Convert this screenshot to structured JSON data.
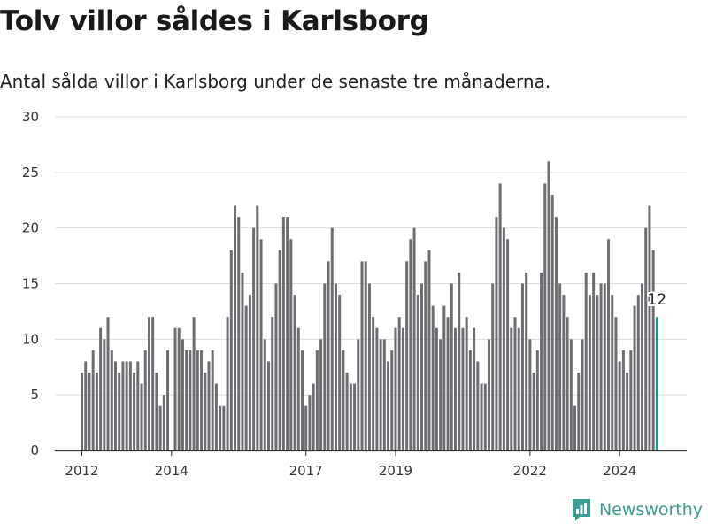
{
  "title": "Tolv villor såldes i Karlsborg",
  "subtitle": "Antal sålda villor i Karlsborg under de senaste tre månaderna.",
  "brand": "Newsworthy",
  "colors": {
    "bar": "#6e6d72",
    "highlight": "#1a9a8e",
    "grid": "#dddddd",
    "axis": "#333333"
  },
  "chart_data": {
    "type": "bar",
    "title": "Tolv villor såldes i Karlsborg",
    "ylim": [
      0,
      30
    ],
    "yticks": [
      0,
      5,
      10,
      15,
      20,
      25,
      30
    ],
    "xticks": [
      "2012",
      "2014",
      "2017",
      "2019",
      "2022",
      "2024"
    ],
    "grid": true,
    "values": [
      7,
      8,
      7,
      9,
      7,
      11,
      10,
      12,
      9,
      8,
      7,
      8,
      8,
      8,
      7,
      8,
      6,
      9,
      12,
      12,
      7,
      4,
      5,
      9,
      0,
      11,
      11,
      10,
      9,
      9,
      12,
      9,
      9,
      7,
      8,
      9,
      6,
      4,
      4,
      12,
      18,
      22,
      21,
      16,
      13,
      14,
      20,
      22,
      19,
      10,
      8,
      12,
      15,
      18,
      21,
      21,
      19,
      14,
      11,
      9,
      4,
      5,
      6,
      9,
      10,
      15,
      17,
      20,
      15,
      14,
      9,
      7,
      6,
      6,
      10,
      17,
      17,
      15,
      12,
      11,
      10,
      10,
      8,
      9,
      11,
      12,
      11,
      17,
      19,
      20,
      14,
      15,
      17,
      18,
      13,
      11,
      10,
      13,
      12,
      15,
      11,
      16,
      11,
      12,
      9,
      11,
      8,
      6,
      6,
      10,
      15,
      21,
      24,
      20,
      19,
      11,
      12,
      11,
      15,
      16,
      10,
      7,
      9,
      16,
      24,
      26,
      23,
      21,
      15,
      14,
      12,
      10,
      4,
      7,
      10,
      16,
      14,
      16,
      14,
      15,
      15,
      19,
      14,
      12,
      8,
      9,
      7,
      9,
      13,
      14,
      15,
      20,
      22,
      18,
      12
    ],
    "highlight": {
      "value": 12,
      "label": "12"
    }
  }
}
